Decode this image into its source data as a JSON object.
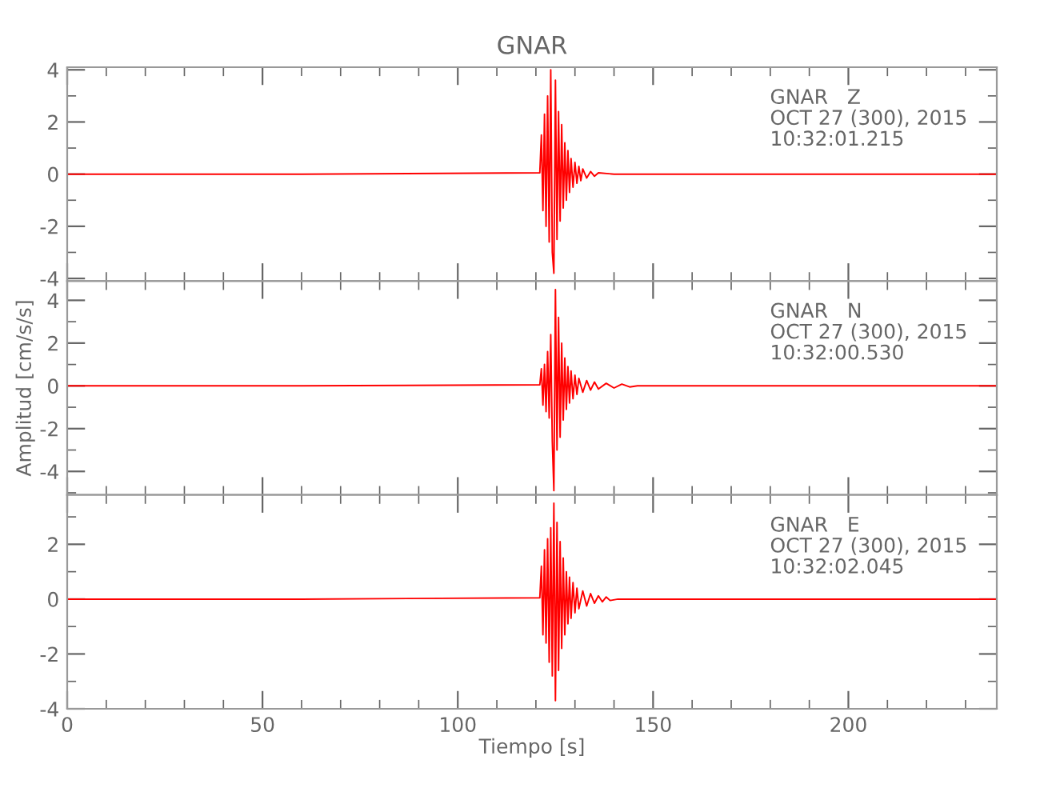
{
  "chart_data": [
    {
      "type": "line",
      "title": "GNAR",
      "annotations": [
        "GNAR   Z\nOCT 27 (300), 2015\n10:32:01.215"
      ],
      "tick_labels": "y",
      "grid": false,
      "legend": false,
      "xlim": [
        0,
        238
      ],
      "xticks": [
        0,
        {
          "value": 10,
          "label": null
        },
        {
          "value": 20,
          "label": null
        },
        {
          "value": 30,
          "label": null
        },
        {
          "value": 40,
          "label": null
        },
        50,
        {
          "value": 60,
          "label": null
        },
        {
          "value": 70,
          "label": null
        },
        {
          "value": 80,
          "label": null
        },
        {
          "value": 90,
          "label": null
        },
        100,
        {
          "value": 110,
          "label": null
        },
        {
          "value": 120,
          "label": null
        },
        {
          "value": 130,
          "label": null
        },
        {
          "value": 140,
          "label": null
        },
        150,
        {
          "value": 160,
          "label": null
        },
        {
          "value": 170,
          "label": null
        },
        {
          "value": 180,
          "label": null
        },
        {
          "value": 190,
          "label": null
        },
        200,
        {
          "value": 210,
          "label": null
        },
        {
          "value": 220,
          "label": null
        },
        {
          "value": 230,
          "label": null
        }
      ],
      "ylim": [
        -4.1,
        4.1
      ],
      "yticks": [
        -4,
        {
          "value": -3,
          "label": null
        },
        -2,
        {
          "value": -1,
          "label": null
        },
        0,
        {
          "value": 1,
          "label": null
        },
        2,
        {
          "value": 3,
          "label": null
        },
        4
      ],
      "series": [
        {
          "color": "#ff0000",
          "x": [
            0,
            60,
            121.0,
            121.4,
            121.8,
            122.2,
            122.6,
            123.0,
            123.4,
            123.8,
            124.2,
            124.6,
            125.0,
            125.4,
            125.8,
            126.2,
            126.6,
            127.0,
            127.4,
            127.8,
            128.2,
            128.6,
            129.0,
            129.5,
            130.0,
            130.5,
            131.0,
            131.5,
            132.0,
            133.0,
            134.0,
            135.0,
            136,
            140,
            180,
            238
          ],
          "values": [
            0,
            0,
            0.05,
            1.5,
            -1.4,
            2.3,
            -2.0,
            3.0,
            -2.6,
            4.0,
            -3.0,
            -3.8,
            3.6,
            -2.5,
            2.4,
            -1.8,
            1.9,
            -1.3,
            1.2,
            -1.0,
            0.9,
            -0.7,
            0.6,
            -0.5,
            0.45,
            -0.35,
            0.3,
            -0.25,
            0.2,
            -0.15,
            0.1,
            -0.08,
            0.05,
            0,
            0,
            0
          ]
        }
      ]
    },
    {
      "type": "line",
      "ylabel": "Amplitud [cm/s/s]",
      "annotations": [
        "GNAR   N\nOCT 27 (300), 2015\n10:32:00.530"
      ],
      "tick_labels": "y",
      "grid": false,
      "legend": false,
      "xlim": [
        0,
        238
      ],
      "xticks": [
        0,
        {
          "value": 10,
          "label": null
        },
        {
          "value": 20,
          "label": null
        },
        {
          "value": 30,
          "label": null
        },
        {
          "value": 40,
          "label": null
        },
        50,
        {
          "value": 60,
          "label": null
        },
        {
          "value": 70,
          "label": null
        },
        {
          "value": 80,
          "label": null
        },
        {
          "value": 90,
          "label": null
        },
        100,
        {
          "value": 110,
          "label": null
        },
        {
          "value": 120,
          "label": null
        },
        {
          "value": 130,
          "label": null
        },
        {
          "value": 140,
          "label": null
        },
        150,
        {
          "value": 160,
          "label": null
        },
        {
          "value": 170,
          "label": null
        },
        {
          "value": 180,
          "label": null
        },
        {
          "value": 190,
          "label": null
        },
        200,
        {
          "value": 210,
          "label": null
        },
        {
          "value": 220,
          "label": null
        },
        {
          "value": 230,
          "label": null
        }
      ],
      "ylim": [
        -5.1,
        4.9
      ],
      "yticks": [
        {
          "value": -5,
          "label": null
        },
        -4,
        {
          "value": -3,
          "label": null
        },
        -2,
        {
          "value": -1,
          "label": null
        },
        0,
        {
          "value": 1,
          "label": null
        },
        2,
        {
          "value": 3,
          "label": null
        },
        4
      ],
      "series": [
        {
          "color": "#ff0000",
          "x": [
            0,
            60,
            121.0,
            121.4,
            121.8,
            122.2,
            122.6,
            123.0,
            123.4,
            123.8,
            124.2,
            124.6,
            125.0,
            125.4,
            125.8,
            126.2,
            126.6,
            127.0,
            127.4,
            127.8,
            128.2,
            128.6,
            129.0,
            129.5,
            130.0,
            130.5,
            131.0,
            132.0,
            133.0,
            134.0,
            135.0,
            136.0,
            138.0,
            140.0,
            142.0,
            144.0,
            146,
            180,
            238
          ],
          "values": [
            0,
            0,
            0.05,
            0.8,
            -0.9,
            1.0,
            -1.2,
            1.6,
            -1.5,
            2.4,
            -2.6,
            -4.9,
            4.5,
            -3.0,
            3.2,
            -2.4,
            2.0,
            -1.6,
            1.3,
            -1.1,
            0.9,
            -0.8,
            0.7,
            -0.6,
            0.5,
            -0.4,
            0.35,
            -0.3,
            0.25,
            -0.2,
            0.18,
            -0.15,
            0.12,
            -0.1,
            0.08,
            -0.05,
            0,
            0,
            0
          ]
        }
      ]
    },
    {
      "type": "line",
      "xlabel": "Tiempo [s]",
      "annotations": [
        "GNAR   E\nOCT 27 (300), 2015\n10:32:02.045"
      ],
      "grid": false,
      "legend": false,
      "xlim": [
        0,
        238
      ],
      "xticks": [
        0,
        {
          "value": 10,
          "label": null
        },
        {
          "value": 20,
          "label": null
        },
        {
          "value": 30,
          "label": null
        },
        {
          "value": 40,
          "label": null
        },
        50,
        {
          "value": 60,
          "label": null
        },
        {
          "value": 70,
          "label": null
        },
        {
          "value": 80,
          "label": null
        },
        {
          "value": 90,
          "label": null
        },
        100,
        {
          "value": 110,
          "label": null
        },
        {
          "value": 120,
          "label": null
        },
        {
          "value": 130,
          "label": null
        },
        {
          "value": 140,
          "label": null
        },
        150,
        {
          "value": 160,
          "label": null
        },
        {
          "value": 170,
          "label": null
        },
        {
          "value": 180,
          "label": null
        },
        {
          "value": 190,
          "label": null
        },
        200,
        {
          "value": 210,
          "label": null
        },
        {
          "value": 220,
          "label": null
        },
        {
          "value": 230,
          "label": null
        }
      ],
      "ylim": [
        -4.0,
        3.8
      ],
      "yticks": [
        -4,
        {
          "value": -3,
          "label": null
        },
        -2,
        {
          "value": -1,
          "label": null
        },
        0,
        {
          "value": 1,
          "label": null
        },
        2,
        {
          "value": 3,
          "label": null
        }
      ],
      "series": [
        {
          "color": "#ff0000",
          "x": [
            0,
            60,
            121.0,
            121.4,
            121.8,
            122.2,
            122.6,
            123.0,
            123.4,
            123.8,
            124.2,
            124.6,
            125.0,
            125.4,
            125.8,
            126.2,
            126.6,
            127.0,
            127.4,
            127.8,
            128.2,
            128.6,
            129.0,
            129.5,
            130.0,
            130.5,
            131.0,
            132.0,
            133.0,
            134.0,
            135.0,
            136.0,
            137.0,
            138.0,
            139.0,
            141,
            180,
            238
          ],
          "values": [
            0,
            0,
            0.05,
            1.2,
            -1.3,
            1.8,
            -1.6,
            2.2,
            -2.3,
            2.6,
            -2.8,
            3.5,
            -3.7,
            2.8,
            -2.6,
            2.1,
            -1.8,
            1.5,
            -1.3,
            1.0,
            -0.9,
            0.8,
            -0.7,
            0.6,
            -0.5,
            0.4,
            -0.35,
            0.3,
            -0.25,
            0.2,
            -0.15,
            0.12,
            -0.1,
            0.08,
            -0.05,
            0,
            0,
            0
          ]
        }
      ]
    }
  ]
}
